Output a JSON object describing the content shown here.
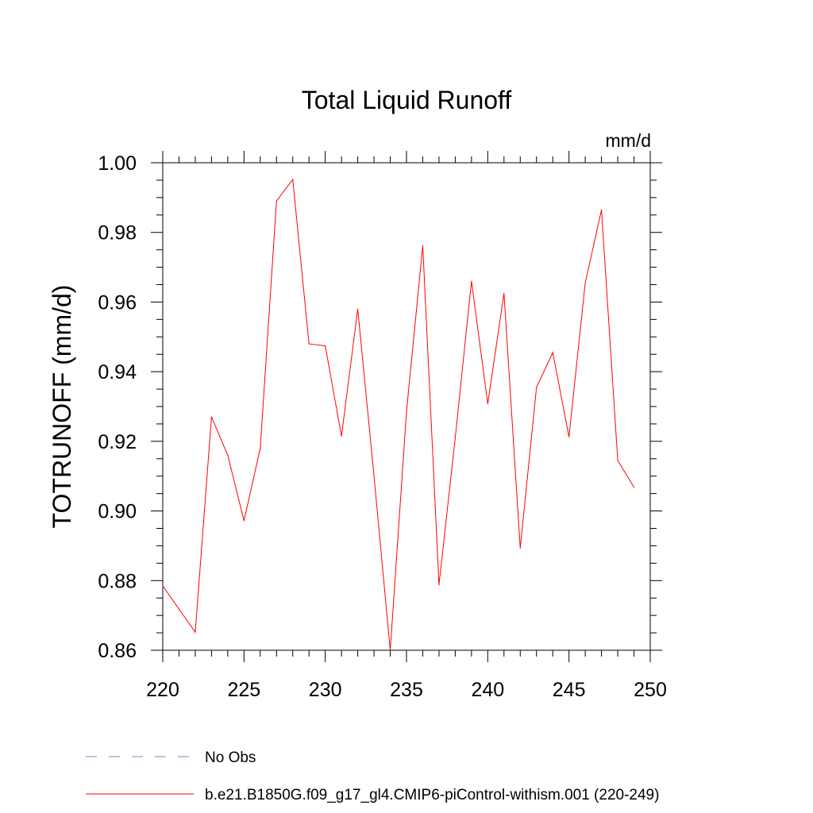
{
  "chart_data": {
    "type": "line",
    "title": "Total Liquid Runoff",
    "units_label": "mm/d",
    "ylabel": "TOTRUNOFF  (mm/d)",
    "xlabel": "",
    "xlim": [
      220,
      250
    ],
    "ylim": [
      0.86,
      1.0
    ],
    "x_ticks": [
      220,
      225,
      230,
      235,
      240,
      245,
      250
    ],
    "x_tick_labels": [
      "220",
      "225",
      "230",
      "235",
      "240",
      "245",
      "250"
    ],
    "y_ticks": [
      0.86,
      0.88,
      0.9,
      0.92,
      0.94,
      0.96,
      0.98,
      1.0
    ],
    "y_tick_labels": [
      "0.86",
      "0.88",
      "0.90",
      "0.92",
      "0.94",
      "0.96",
      "0.98",
      "1.00"
    ],
    "grid": false,
    "legend_position": "bottom",
    "series": [
      {
        "name": "b.e21.B1850G.f09_g17_gl4.CMIP6-piControl-withism.001 (220-249)",
        "color": "#ff0000",
        "style": "solid",
        "x": [
          220,
          221,
          222,
          223,
          224,
          225,
          226,
          227,
          228,
          229,
          230,
          231,
          232,
          233,
          234,
          235,
          236,
          237,
          238,
          239,
          240,
          241,
          242,
          243,
          244,
          245,
          246,
          247,
          248,
          249
        ],
        "y": [
          0.8785,
          0.8718,
          0.8652,
          0.927,
          0.916,
          0.8972,
          0.918,
          0.989,
          0.9952,
          0.948,
          0.9474,
          0.9215,
          0.958,
          0.91,
          0.86,
          0.9285,
          0.9762,
          0.8788,
          0.921,
          0.966,
          0.9308,
          0.9625,
          0.8893,
          0.9355,
          0.9455,
          0.9213,
          0.9655,
          0.9865,
          0.9145,
          0.9068
        ]
      },
      {
        "name": "No Obs",
        "color": "#8a7fd0",
        "style": "dashed",
        "x": [],
        "y": []
      }
    ]
  }
}
